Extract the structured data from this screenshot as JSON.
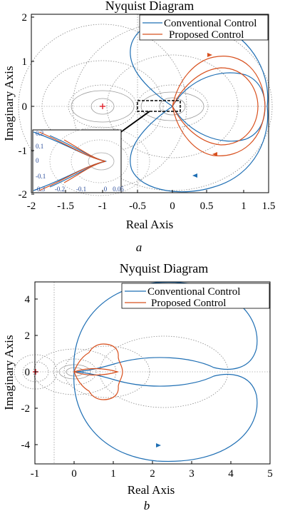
{
  "figure_a": {
    "subtitle": "a",
    "chart": {
      "type": "line",
      "title": "Nyquist Diagram",
      "xlabel": "Real Axis",
      "ylabel": "Imaginary Axis",
      "xlim": [
        -2,
        1.5
      ],
      "ylim": [
        -2,
        2
      ],
      "x_ticks": [
        "-2",
        "-1.5",
        "-1",
        "-0.5",
        "0",
        "0.5",
        "1",
        "1.5"
      ],
      "y_ticks": [
        "2",
        "1",
        "0",
        "-1",
        "-2"
      ],
      "legend": [
        "Conventional Control",
        "Proposed Control"
      ],
      "legend_position": "top-right",
      "critical_point": [
        -1,
        0
      ],
      "colors": {
        "conventional": "#1f6fb4",
        "proposed": "#d8501e",
        "marker": "#e0202a"
      },
      "series": [
        {
          "name": "Conventional Control",
          "x": [
            0,
            0.5,
            1.0,
            1.35,
            1.45,
            1.35,
            1.0,
            0.5,
            0,
            -0.3,
            -0.45,
            -0.3,
            0
          ],
          "y": [
            0,
            0.7,
            0.75,
            0.45,
            0,
            -0.45,
            -0.75,
            -0.7,
            0,
            0.6,
            0,
            -0.6,
            0
          ]
        },
        {
          "name": "Proposed Control",
          "x": [
            0,
            0.4,
            0.9,
            1.25,
            1.35,
            1.25,
            0.9,
            0.4,
            0,
            -0.05,
            0
          ],
          "y": [
            0,
            0.6,
            0.68,
            0.4,
            0,
            -0.4,
            -0.68,
            -0.6,
            0,
            0.05,
            0
          ]
        }
      ],
      "inset": {
        "x_ticks": [
          "-0.3",
          "-0.2",
          "-0.1",
          "0",
          "0.05"
        ],
        "y_ticks": [
          "0.2",
          "0.1",
          "0",
          "-0.1",
          "-0.2"
        ]
      }
    }
  },
  "figure_b": {
    "subtitle": "b",
    "chart": {
      "type": "line",
      "title": "Nyquist Diagram",
      "xlabel": "Real Axis",
      "ylabel": "Imaginary Axis",
      "xlim": [
        -1,
        5
      ],
      "ylim": [
        -5,
        5
      ],
      "x_ticks": [
        "-1",
        "0",
        "1",
        "2",
        "3",
        "4",
        "5"
      ],
      "y_ticks": [
        "4",
        "2",
        "0",
        "-2",
        "-4"
      ],
      "legend": [
        "Conventional Control",
        "Proposed Control"
      ],
      "legend_position": "top-right",
      "critical_point": [
        -1,
        0
      ],
      "colors": {
        "conventional": "#1f6fb4",
        "proposed": "#d8501e",
        "marker": "#e0202a"
      },
      "series": [
        {
          "name": "Conventional Control",
          "x": [
            0,
            0.2,
            1.0,
            2.2,
            3.6,
            4.6,
            4.0,
            2.2,
            0.6,
            0.1,
            0,
            0.1,
            0.6,
            2.2,
            4.0,
            4.6,
            3.6,
            2.2,
            1.0,
            0.2,
            0
          ],
          "y": [
            0,
            0.8,
            2.9,
            4.0,
            3.3,
            1.2,
            0.2,
            0.8,
            0.3,
            0.05,
            0,
            -0.05,
            -0.3,
            -0.8,
            -0.2,
            -1.2,
            -3.3,
            -4.0,
            -2.9,
            -0.8,
            0
          ]
        },
        {
          "name": "Proposed Control",
          "x": [
            0,
            0.5,
            0.8,
            1.1,
            1.25,
            1.1,
            0.8,
            0.5,
            0,
            0.5,
            1.2,
            0.5,
            0
          ],
          "y": [
            0,
            0.8,
            1.2,
            0.9,
            0.3,
            -0.9,
            -1.2,
            -0.8,
            0,
            0.1,
            0,
            -0.1,
            0
          ]
        }
      ]
    }
  }
}
